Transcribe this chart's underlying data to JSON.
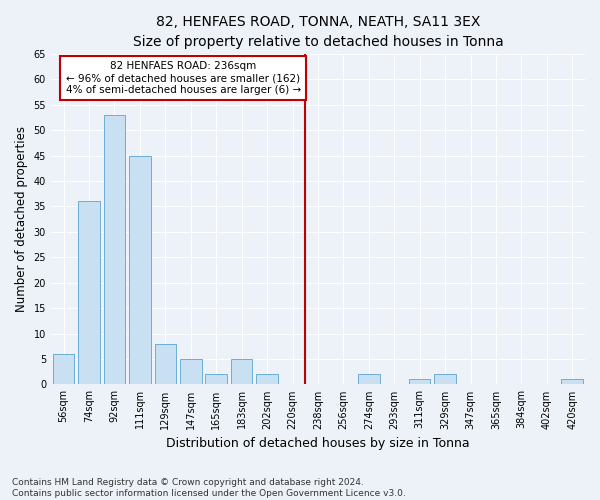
{
  "title": "82, HENFAES ROAD, TONNA, NEATH, SA11 3EX",
  "subtitle": "Size of property relative to detached houses in Tonna",
  "xlabel": "Distribution of detached houses by size in Tonna",
  "ylabel": "Number of detached properties",
  "categories": [
    "56sqm",
    "74sqm",
    "92sqm",
    "111sqm",
    "129sqm",
    "147sqm",
    "165sqm",
    "183sqm",
    "202sqm",
    "220sqm",
    "238sqm",
    "256sqm",
    "274sqm",
    "293sqm",
    "311sqm",
    "329sqm",
    "347sqm",
    "365sqm",
    "384sqm",
    "402sqm",
    "420sqm"
  ],
  "values": [
    6,
    36,
    53,
    45,
    8,
    5,
    2,
    5,
    2,
    0,
    0,
    0,
    2,
    0,
    1,
    2,
    0,
    0,
    0,
    0,
    1
  ],
  "bar_color": "#c9dff2",
  "bar_edge_color": "#6aaed6",
  "vline_x_index": 10,
  "annotation_text": "82 HENFAES ROAD: 236sqm\n← 96% of detached houses are smaller (162)\n4% of semi-detached houses are larger (6) →",
  "annotation_box_color": "#ffffff",
  "annotation_box_edge_color": "#c00000",
  "vline_color": "#c00000",
  "ylim": [
    0,
    65
  ],
  "yticks": [
    0,
    5,
    10,
    15,
    20,
    25,
    30,
    35,
    40,
    45,
    50,
    55,
    60,
    65
  ],
  "background_color": "#edf2f9",
  "grid_color": "#ffffff",
  "footer_text": "Contains HM Land Registry data © Crown copyright and database right 2024.\nContains public sector information licensed under the Open Government Licence v3.0.",
  "title_fontsize": 10,
  "subtitle_fontsize": 9.5,
  "xlabel_fontsize": 9,
  "ylabel_fontsize": 8.5,
  "tick_fontsize": 7,
  "annotation_fontsize": 7.5,
  "footer_fontsize": 6.5
}
